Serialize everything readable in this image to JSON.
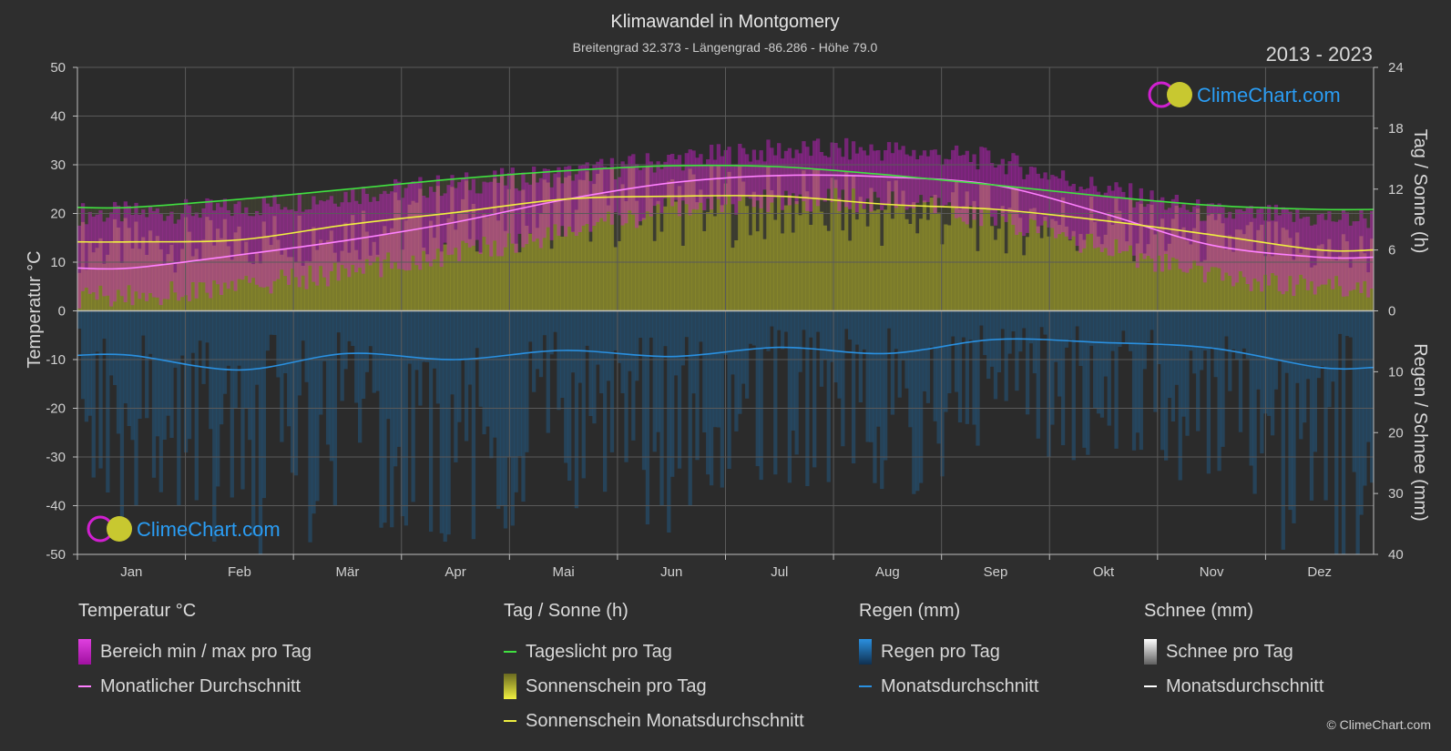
{
  "title": "Klimawandel in Montgomery",
  "subtitle": "Breitengrad 32.373 - Längengrad -86.286 - Höhe 79.0",
  "year_range": "2013 - 2023",
  "brand": "ClimeChart.com",
  "copyright": "© ClimeChart.com",
  "colors": {
    "background": "#2e2e2e",
    "temp_range": "#d020d0",
    "temp_avg": "#ff80ff",
    "daylight": "#40e040",
    "sunshine_fill": "#b0b028",
    "sunshine_avg": "#f0f040",
    "rain_fill": "#1e6fb0",
    "rain_avg": "#2a90e0",
    "snow_avg": "#ffffff",
    "brand_text": "#2a9df4"
  },
  "legend": {
    "temperature": {
      "title": "Temperatur °C",
      "items": [
        "Bereich min / max pro Tag",
        "Monatlicher Durchschnitt"
      ]
    },
    "sun": {
      "title": "Tag / Sonne (h)",
      "items": [
        "Tageslicht pro Tag",
        "Sonnenschein pro Tag",
        "Sonnenschein Monatsdurchschnitt"
      ]
    },
    "rain": {
      "title": "Regen (mm)",
      "items": [
        "Regen pro Tag",
        "Monatsdurchschnitt"
      ]
    },
    "snow": {
      "title": "Schnee (mm)",
      "items": [
        "Schnee pro Tag",
        "Monatsdurchschnitt"
      ]
    }
  },
  "chart_data": {
    "type": "line",
    "categories": [
      "Jan",
      "Feb",
      "Mär",
      "Apr",
      "Mai",
      "Jun",
      "Jul",
      "Aug",
      "Sep",
      "Okt",
      "Nov",
      "Dez"
    ],
    "left_axis": {
      "label": "Temperatur °C",
      "range": [
        -50,
        50
      ],
      "ticks": [
        50,
        40,
        30,
        20,
        10,
        0,
        -10,
        -20,
        -30,
        -40,
        -50
      ]
    },
    "right_axis_top": {
      "label": "Tag / Sonne (h)",
      "range": [
        0,
        24
      ],
      "ticks": [
        24,
        18,
        12,
        6,
        0
      ]
    },
    "right_axis_bottom": {
      "label": "Regen / Schnee (mm)",
      "range": [
        0,
        40
      ],
      "ticks": [
        0,
        10,
        20,
        30,
        40
      ]
    },
    "grid": true,
    "series": [
      {
        "name": "Monatlicher Durchschnitt",
        "unit": "°C",
        "values": [
          8.8,
          11.5,
          14.5,
          18.2,
          22.8,
          26.3,
          27.8,
          27.5,
          25.8,
          20.0,
          13.5,
          11.0
        ]
      },
      {
        "name": "Tageslicht pro Tag",
        "unit": "h",
        "values": [
          10.2,
          11.0,
          12.0,
          13.0,
          13.8,
          14.3,
          14.2,
          13.4,
          12.4,
          11.3,
          10.4,
          10.0
        ]
      },
      {
        "name": "Sonnenschein Monatsdurchschnitt",
        "unit": "h",
        "values": [
          6.8,
          7.0,
          8.5,
          9.7,
          11.0,
          11.3,
          11.3,
          10.5,
          10.0,
          8.9,
          7.5,
          6.0
        ]
      },
      {
        "name": "Regen Monatsdurchschnitt",
        "unit": "mm",
        "values": [
          7.3,
          9.7,
          7.0,
          8.0,
          6.5,
          7.5,
          6.0,
          7.0,
          4.7,
          5.2,
          6.1,
          9.3
        ]
      },
      {
        "name": "Schnee Monatsdurchschnitt",
        "unit": "mm",
        "values": [
          0,
          0,
          0,
          0,
          0,
          0,
          0,
          0,
          0,
          0,
          0,
          0
        ]
      }
    ],
    "temp_range": {
      "min": [
        3,
        5,
        8,
        12,
        16,
        21,
        23,
        22.5,
        19,
        13,
        7,
        5
      ],
      "max": [
        20,
        21,
        24,
        26,
        28,
        31,
        33,
        33,
        31,
        25,
        20,
        19
      ]
    }
  }
}
